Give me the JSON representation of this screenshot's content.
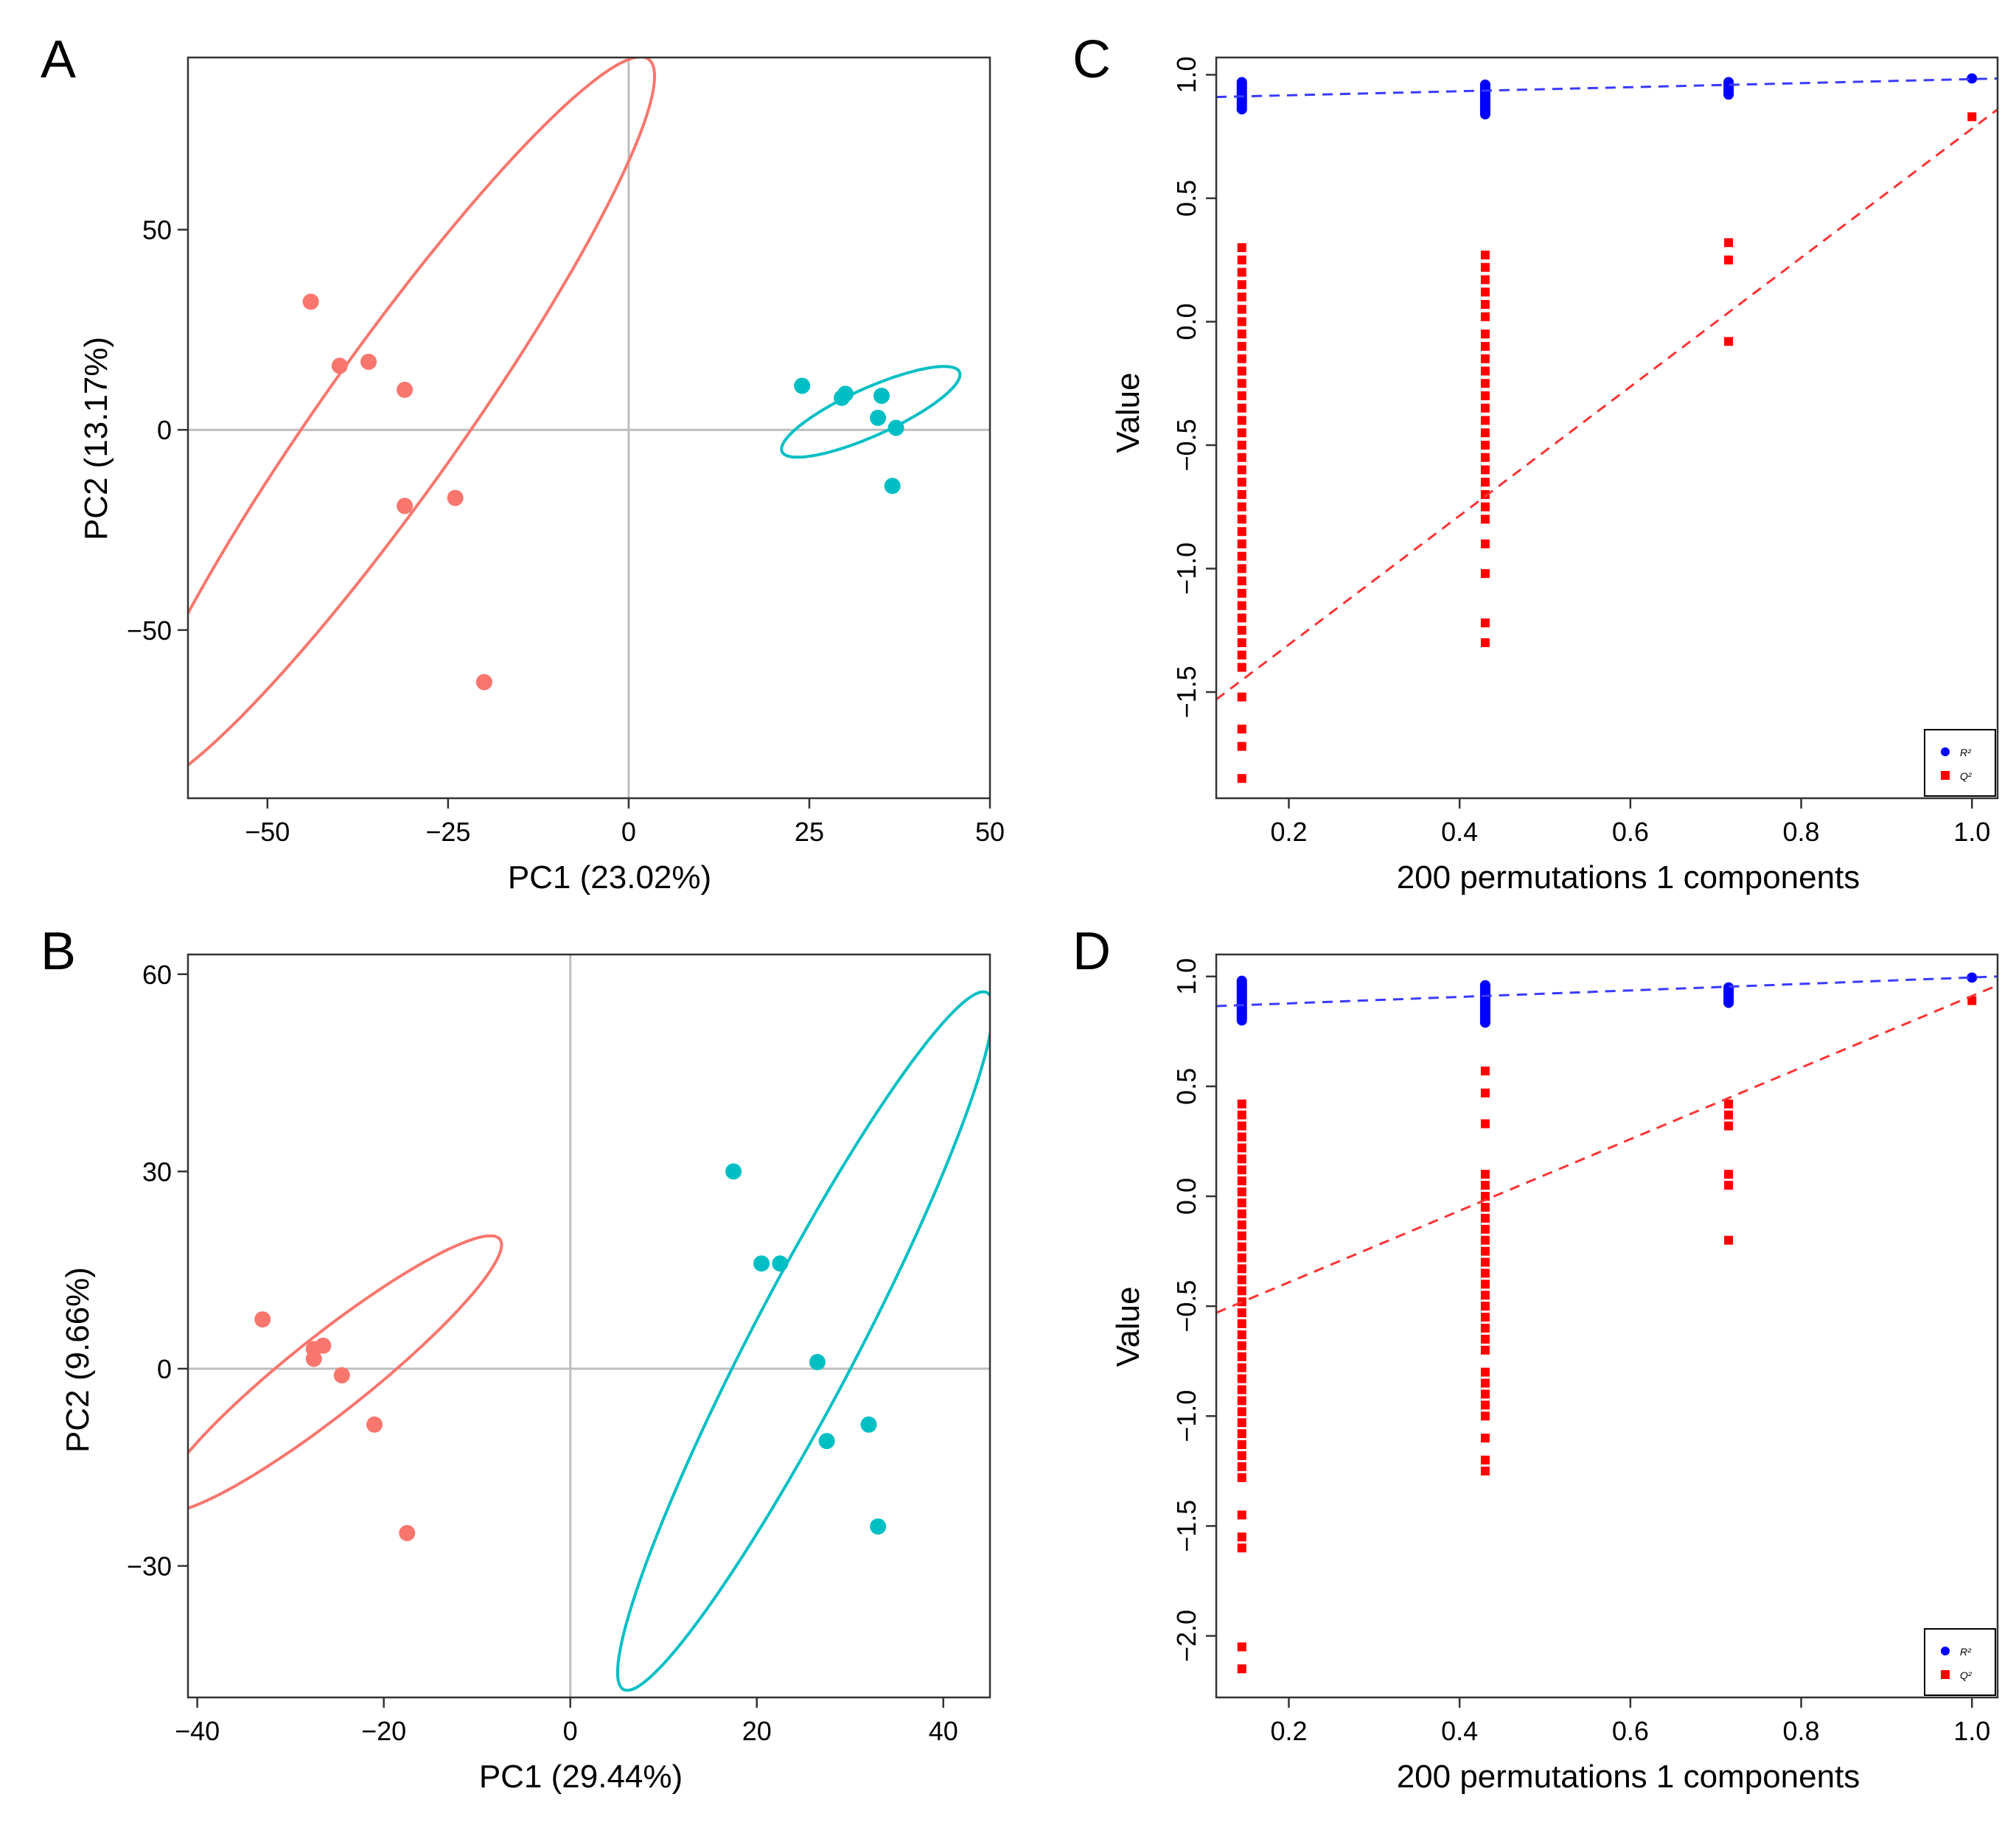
{
  "colors": {
    "group_red": "#f8766d",
    "group_teal": "#00bfc4",
    "perm_r2": "#0000ff",
    "perm_q2": "#ff0000",
    "r2_line": "#3a3aff",
    "q2_line": "#ff3333",
    "zero_line": "#bebebe"
  },
  "chart_data": [
    {
      "panel": "A",
      "type": "scatter",
      "xlabel": "PC1 (23.02%)",
      "ylabel": "PC2 (13.17%)",
      "xlim": [
        -61,
        50
      ],
      "ylim": [
        -92,
        93
      ],
      "xticks": [
        {
          "v": -50,
          "label": "−50"
        },
        {
          "v": -25,
          "label": "−25"
        },
        {
          "v": 0,
          "label": "0"
        },
        {
          "v": 25,
          "label": "25"
        },
        {
          "v": 50,
          "label": "50"
        }
      ],
      "yticks": [
        {
          "v": 50,
          "label": "50"
        },
        {
          "v": 0,
          "label": "0"
        },
        {
          "v": -50,
          "label": "−50"
        }
      ],
      "grid": false,
      "zero_lines": true,
      "series": [
        {
          "color": "#f8766d",
          "points": [
            [
              -44,
              32
            ],
            [
              -40,
              16
            ],
            [
              -36,
              17
            ],
            [
              -31,
              10
            ],
            [
              -31,
              -19
            ],
            [
              -24,
              -17
            ],
            [
              -20,
              -63
            ]
          ],
          "ellipse": {
            "cx": -33,
            "cy": 1.6,
            "semi_major": 98,
            "semi_minor": 11,
            "angle_deg": 69
          }
        },
        {
          "color": "#00bfc4",
          "points": [
            [
              24,
              11
            ],
            [
              29.5,
              8
            ],
            [
              30,
              9
            ],
            [
              35,
              8.5
            ],
            [
              34.5,
              3
            ],
            [
              37,
              0.5
            ],
            [
              36.5,
              -14
            ]
          ],
          "ellipse": {
            "cx": 33.5,
            "cy": 4.5,
            "semi_major": 16,
            "semi_minor": 5,
            "angle_deg": 42
          }
        }
      ]
    },
    {
      "panel": "B",
      "type": "scatter",
      "xlabel": "PC1 (29.44%)",
      "ylabel": "PC2 (9.66%)",
      "xlim": [
        -41,
        45
      ],
      "ylim": [
        -50,
        63
      ],
      "xticks": [
        {
          "v": -40,
          "label": "−40"
        },
        {
          "v": -20,
          "label": "−20"
        },
        {
          "v": 0,
          "label": "0"
        },
        {
          "v": 20,
          "label": "20"
        },
        {
          "v": 40,
          "label": "40"
        }
      ],
      "yticks": [
        {
          "v": 60,
          "label": "60"
        },
        {
          "v": 30,
          "label": "30"
        },
        {
          "v": 0,
          "label": "0"
        },
        {
          "v": -30,
          "label": "−30"
        }
      ],
      "grid": false,
      "zero_lines": true,
      "series": [
        {
          "color": "#f8766d",
          "points": [
            [
              -33,
              7.5
            ],
            [
              -27.5,
              3
            ],
            [
              -27.5,
              1.5
            ],
            [
              -26.5,
              3.5
            ],
            [
              -24.5,
              -1
            ],
            [
              -21,
              -8.5
            ],
            [
              -17.5,
              -25
            ]
          ],
          "ellipse": {
            "cx": -25.8,
            "cy": -0.8,
            "semi_major": 27.5,
            "semi_minor": 5,
            "angle_deg": 49
          }
        },
        {
          "color": "#00bfc4",
          "points": [
            [
              17.5,
              30
            ],
            [
              20.5,
              16
            ],
            [
              22.5,
              16
            ],
            [
              26.5,
              1
            ],
            [
              27.5,
              -11
            ],
            [
              32,
              -8.5
            ],
            [
              33,
              -24
            ]
          ],
          "ellipse": {
            "cx": 25.2,
            "cy": 4.2,
            "semi_major": 56.5,
            "semi_minor": 6,
            "angle_deg": 70
          }
        }
      ]
    },
    {
      "panel": "C",
      "type": "scatter",
      "xlabel": "200 permutations 1 components",
      "ylabel": "Value",
      "xlim": [
        0.115,
        1.03
      ],
      "ylim": [
        -1.93,
        1.07
      ],
      "xticks": [
        {
          "v": 0.2,
          "label": "0.2"
        },
        {
          "v": 0.4,
          "label": "0.4"
        },
        {
          "v": 0.6,
          "label": "0.6"
        },
        {
          "v": 0.8,
          "label": "0.8"
        },
        {
          "v": 1.0,
          "label": "1.0"
        }
      ],
      "yticks": [
        {
          "v": 1.0,
          "label": "1.0"
        },
        {
          "v": 0.5,
          "label": "0.5"
        },
        {
          "v": 0.0,
          "label": "0.0"
        },
        {
          "v": -0.5,
          "label": "−0.5"
        },
        {
          "v": -1.0,
          "label": "−1.0"
        },
        {
          "v": -1.5,
          "label": "−1.5"
        }
      ],
      "legend": {
        "position": "bottom-right",
        "entries": [
          {
            "label": "R²",
            "color": "#0000ff"
          },
          {
            "label": "Q²",
            "color": "#ff0000"
          }
        ]
      },
      "r2_line": {
        "x": [
          0.115,
          1.03
        ],
        "y": [
          0.91,
          0.985
        ]
      },
      "q2_line": {
        "x": [
          0.115,
          1.03
        ],
        "y": [
          -1.53,
          0.86
        ]
      },
      "r2_points": {
        "x": [
          0.145,
          0.43,
          0.715,
          1.0
        ],
        "ranges": [
          [
            0.86,
            0.97
          ],
          [
            0.84,
            0.96
          ],
          [
            0.92,
            0.97
          ],
          [
            0.985,
            0.985
          ]
        ],
        "color": "#0000ff"
      },
      "q2_points": {
        "x": [
          0.145,
          0.43,
          0.715,
          1.0
        ],
        "values": [
          [
            0.3,
            0.25,
            0.2,
            0.15,
            0.1,
            0.05,
            0.0,
            -0.05,
            -0.1,
            -0.15,
            -0.2,
            -0.25,
            -0.3,
            -0.35,
            -0.4,
            -0.45,
            -0.5,
            -0.55,
            -0.6,
            -0.65,
            -0.7,
            -0.75,
            -0.8,
            -0.85,
            -0.9,
            -0.95,
            -1.0,
            -1.05,
            -1.1,
            -1.15,
            -1.2,
            -1.25,
            -1.3,
            -1.35,
            -1.4,
            -1.52,
            -1.65,
            -1.72,
            -1.85
          ],
          [
            0.27,
            0.22,
            0.17,
            0.12,
            0.07,
            0.02,
            -0.05,
            -0.1,
            -0.15,
            -0.2,
            -0.25,
            -0.3,
            -0.35,
            -0.4,
            -0.45,
            -0.5,
            -0.55,
            -0.6,
            -0.65,
            -0.7,
            -0.75,
            -0.8,
            -0.9,
            -1.02,
            -1.22,
            -1.3
          ],
          [
            0.32,
            0.25,
            -0.08
          ],
          [
            0.83
          ]
        ],
        "color": "#ff0000"
      }
    },
    {
      "panel": "D",
      "type": "scatter",
      "xlabel": "200 permutations 1 components",
      "ylabel": "Value",
      "xlim": [
        0.115,
        1.03
      ],
      "ylim": [
        -2.28,
        1.1
      ],
      "xticks": [
        {
          "v": 0.2,
          "label": "0.2"
        },
        {
          "v": 0.4,
          "label": "0.4"
        },
        {
          "v": 0.6,
          "label": "0.6"
        },
        {
          "v": 0.8,
          "label": "0.8"
        },
        {
          "v": 1.0,
          "label": "1.0"
        }
      ],
      "yticks": [
        {
          "v": 1.0,
          "label": "1.0"
        },
        {
          "v": 0.5,
          "label": "0.5"
        },
        {
          "v": 0.0,
          "label": "0.0"
        },
        {
          "v": -0.5,
          "label": "−0.5"
        },
        {
          "v": -1.0,
          "label": "−1.0"
        },
        {
          "v": -1.5,
          "label": "−1.5"
        },
        {
          "v": -2.0,
          "label": "−2.0"
        }
      ],
      "legend": {
        "position": "bottom-right",
        "entries": [
          {
            "label": "R²",
            "color": "#0000ff"
          },
          {
            "label": "Q²",
            "color": "#ff0000"
          }
        ]
      },
      "r2_line": {
        "x": [
          0.115,
          1.03
        ],
        "y": [
          0.865,
          1.0
        ]
      },
      "q2_line": {
        "x": [
          0.115,
          1.03
        ],
        "y": [
          -0.53,
          0.96
        ]
      },
      "r2_points": {
        "x": [
          0.145,
          0.43,
          0.715,
          1.0
        ],
        "ranges": [
          [
            0.8,
            0.98
          ],
          [
            0.79,
            0.96
          ],
          [
            0.88,
            0.95
          ],
          [
            0.995,
            0.995
          ]
        ],
        "color": "#0000ff"
      },
      "q2_points": {
        "x": [
          0.145,
          0.43,
          0.715,
          1.0
        ],
        "values": [
          [
            0.42,
            0.37,
            0.32,
            0.27,
            0.22,
            0.17,
            0.12,
            0.07,
            0.02,
            -0.03,
            -0.08,
            -0.13,
            -0.18,
            -0.23,
            -0.28,
            -0.33,
            -0.38,
            -0.43,
            -0.48,
            -0.53,
            -0.58,
            -0.63,
            -0.68,
            -0.73,
            -0.78,
            -0.83,
            -0.88,
            -0.93,
            -0.98,
            -1.03,
            -1.08,
            -1.13,
            -1.18,
            -1.23,
            -1.28,
            -1.45,
            -1.55,
            -1.6,
            -2.05,
            -2.15
          ],
          [
            0.57,
            0.47,
            0.33,
            0.1,
            0.05,
            0.0,
            -0.05,
            -0.1,
            -0.15,
            -0.2,
            -0.25,
            -0.3,
            -0.35,
            -0.4,
            -0.45,
            -0.5,
            -0.55,
            -0.6,
            -0.65,
            -0.7,
            -0.8,
            -0.85,
            -0.9,
            -0.95,
            -1.0,
            -1.1,
            -1.2,
            -1.25
          ],
          [
            0.42,
            0.37,
            0.32,
            0.1,
            0.05,
            -0.2
          ],
          [
            0.89
          ]
        ],
        "color": "#ff0000"
      }
    }
  ]
}
